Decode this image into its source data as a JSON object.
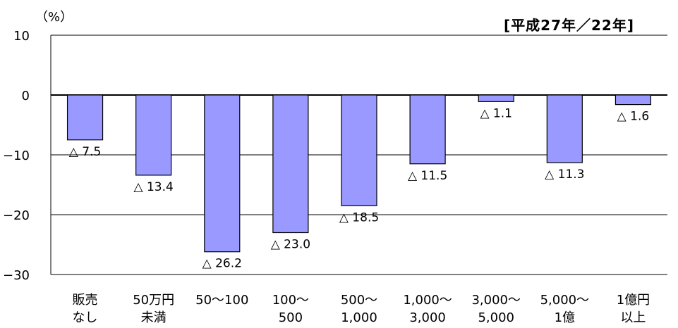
{
  "unit_label": "（%）",
  "period_label": "[平成27年／22年]",
  "chart_data": {
    "type": "bar",
    "title": "",
    "xlabel": "",
    "ylabel": "（%）",
    "ylim": [
      -30,
      10
    ],
    "yticks": [
      10,
      0,
      -10,
      -20,
      -30
    ],
    "ytick_labels": [
      "10",
      "0",
      "−10",
      "−20",
      "−30"
    ],
    "grid": true,
    "bar_color": "#9999ff",
    "categories": [
      [
        "販売",
        "なし"
      ],
      [
        "50万円",
        "未満"
      ],
      [
        "50～100"
      ],
      [
        "100～",
        "500"
      ],
      [
        "500～",
        "1,000"
      ],
      [
        "1,000～",
        "3,000"
      ],
      [
        "3,000～",
        "5,000"
      ],
      [
        "5,000～",
        "1億"
      ],
      [
        "1億円",
        "以上"
      ]
    ],
    "values": [
      -7.5,
      -13.4,
      -26.2,
      -23.0,
      -18.5,
      -11.5,
      -1.1,
      -11.3,
      -1.6
    ],
    "data_labels": [
      "△ 7.5",
      "△ 13.4",
      "△ 26.2",
      "△ 23.0",
      "△ 18.5",
      "△ 11.5",
      "△ 1.1",
      "△ 11.3",
      "△ 1.6"
    ]
  }
}
